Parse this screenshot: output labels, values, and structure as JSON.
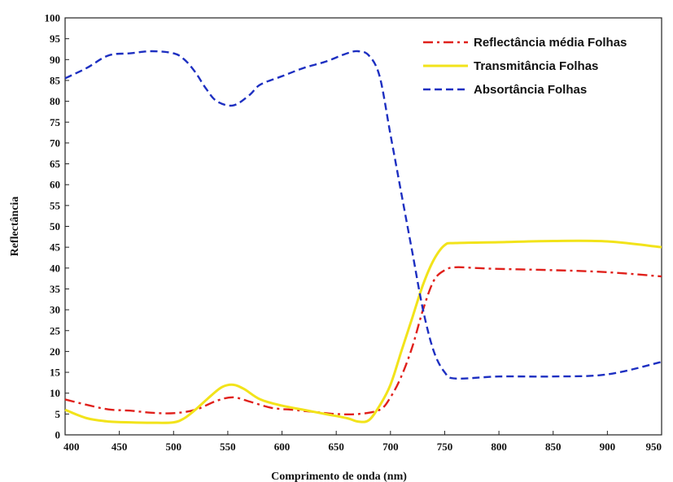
{
  "chart_data": {
    "type": "line",
    "title": "",
    "xlabel": "Comprimento de onda (nm)",
    "ylabel": "Reflectância",
    "xlim": [
      400,
      950
    ],
    "ylim": [
      0,
      100
    ],
    "xticks": [
      400,
      450,
      500,
      550,
      600,
      650,
      700,
      750,
      800,
      850,
      900,
      950
    ],
    "yticks": [
      0,
      5,
      10,
      15,
      20,
      25,
      30,
      35,
      40,
      45,
      50,
      55,
      60,
      65,
      70,
      75,
      80,
      85,
      90,
      95,
      100
    ],
    "grid": false,
    "legend": "top-right",
    "series": [
      {
        "name": "Reflectância média Folhas",
        "color": "#e0201b",
        "dash": "dash-dot",
        "x": [
          400,
          420,
          440,
          460,
          480,
          500,
          520,
          540,
          555,
          570,
          590,
          610,
          630,
          650,
          670,
          690,
          700,
          710,
          720,
          730,
          740,
          750,
          760,
          780,
          800,
          850,
          900,
          950
        ],
        "y": [
          8.5,
          7.2,
          6.1,
          5.8,
          5.3,
          5.2,
          6.0,
          8.2,
          9.0,
          8.0,
          6.5,
          6.0,
          5.5,
          5.0,
          5.0,
          6.0,
          9.0,
          14.0,
          21.0,
          30.0,
          37.0,
          39.5,
          40.2,
          40.0,
          39.8,
          39.5,
          39.0,
          38.0
        ]
      },
      {
        "name": "Transmitância Folhas",
        "color": "#f2e31a",
        "dash": "solid",
        "x": [
          400,
          420,
          440,
          460,
          480,
          500,
          510,
          520,
          535,
          545,
          555,
          565,
          580,
          600,
          620,
          640,
          660,
          670,
          680,
          690,
          700,
          710,
          720,
          730,
          740,
          750,
          760,
          800,
          850,
          900,
          950
        ],
        "y": [
          6.0,
          4.0,
          3.2,
          3.0,
          2.9,
          3.0,
          4.0,
          6.0,
          9.5,
          11.5,
          12.0,
          11.0,
          8.5,
          7.0,
          6.0,
          5.0,
          4.0,
          3.2,
          3.5,
          7.0,
          12.0,
          20.0,
          28.0,
          36.0,
          42.0,
          45.5,
          46.0,
          46.2,
          46.5,
          46.4,
          45.0
        ]
      },
      {
        "name": "Absortância Folhas",
        "color": "#1d2fc1",
        "dash": "dashed",
        "x": [
          400,
          420,
          440,
          460,
          480,
          500,
          510,
          520,
          530,
          540,
          555,
          570,
          580,
          600,
          620,
          640,
          660,
          670,
          680,
          690,
          700,
          710,
          720,
          730,
          740,
          750,
          760,
          800,
          850,
          900,
          950
        ],
        "y": [
          85.5,
          88.0,
          91.0,
          91.5,
          92.0,
          91.5,
          90.0,
          87.0,
          83.0,
          80.0,
          79.0,
          81.5,
          84.0,
          86.0,
          88.0,
          89.5,
          91.5,
          92.0,
          91.0,
          86.0,
          72.0,
          58.0,
          44.0,
          30.0,
          20.0,
          15.0,
          13.5,
          14.0,
          14.0,
          14.5,
          17.5
        ]
      }
    ]
  }
}
